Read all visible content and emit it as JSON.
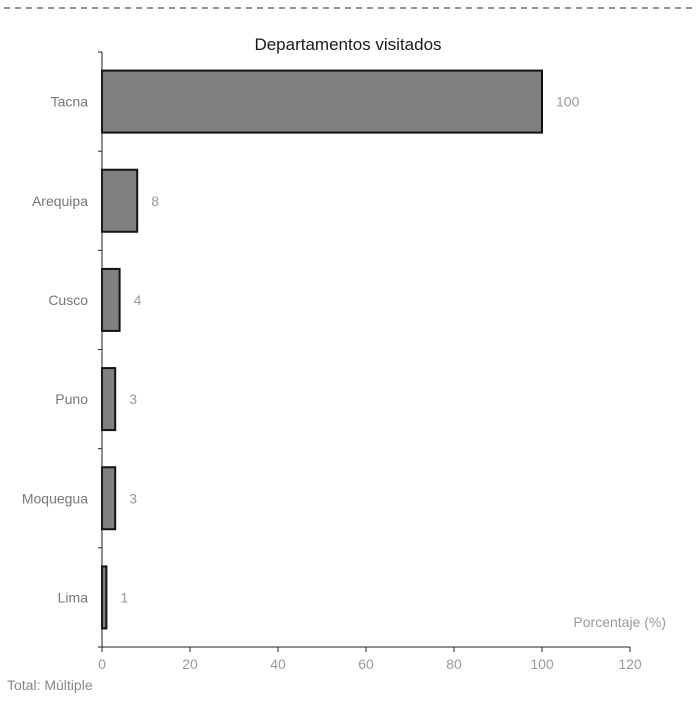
{
  "chart_data": {
    "type": "bar",
    "orientation": "horizontal",
    "title": "Departamentos visitados",
    "categories": [
      "Tacna",
      "Arequipa",
      "Cusco",
      "Puno",
      "Moquegua",
      "Lima"
    ],
    "values": [
      100,
      8,
      4,
      3,
      3,
      1
    ],
    "data_labels": [
      "100",
      "8",
      "4",
      "3",
      "3",
      "1"
    ],
    "xlabel": "Porcentaje (%)",
    "ylabel": "",
    "xlim": [
      0,
      120
    ],
    "xticks": [
      "0",
      "20",
      "40",
      "60",
      "80",
      "100",
      "120"
    ],
    "grid": false,
    "legend": "none",
    "bar_color": "#808080",
    "bar_outline": "#111111"
  },
  "footer": {
    "total_label": "Total",
    "total_value": ": Múltiple"
  }
}
